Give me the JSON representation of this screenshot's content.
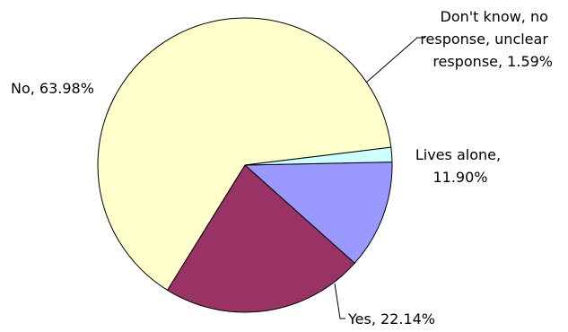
{
  "chart_data": {
    "type": "pie",
    "title": "",
    "start_angle_deg": -1.2,
    "direction": "clockwise",
    "slices": [
      {
        "label_lines": [
          "Lives alone,",
          "11.90%"
        ],
        "category": "Lives alone",
        "value": 11.9,
        "color": "#9999ff"
      },
      {
        "label_lines": [
          "Yes, 22.14%"
        ],
        "category": "Yes",
        "value": 22.14,
        "color": "#993366"
      },
      {
        "label_lines": [
          "No, 63.98%"
        ],
        "category": "No",
        "value": 63.98,
        "color": "#ffffcc"
      },
      {
        "label_lines": [
          "Don't know, no",
          "response, unclear",
          "response, 1.59%"
        ],
        "category": "Don't know, no response, unclear response",
        "value": 1.59,
        "color": "#ccffff"
      }
    ]
  }
}
